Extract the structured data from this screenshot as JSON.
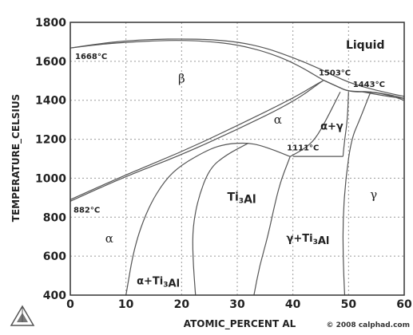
{
  "chart_data": {
    "type": "phase_diagram",
    "xlabel": "ATOMIC_PERCENT AL",
    "ylabel": "TEMPERATURE_CELSIUS",
    "xlim": [
      0,
      60
    ],
    "ylim": [
      400,
      1800
    ],
    "x_ticks": [
      "0",
      "10",
      "20",
      "30",
      "40",
      "50",
      "60"
    ],
    "y_ticks": [
      "1800",
      "1600",
      "1400",
      "1200",
      "1000",
      "800",
      "600",
      "400"
    ],
    "grid": true,
    "regions": [
      {
        "label": "Liquid",
        "x": 53,
        "y": 1665
      },
      {
        "label": "β",
        "x": 20,
        "y": 1490
      },
      {
        "label": "α",
        "x": 37.3,
        "y": 1280
      },
      {
        "label": "α+γ",
        "x": 47,
        "y": 1250
      },
      {
        "label": "Ti₃Al",
        "x": 30.8,
        "y": 885
      },
      {
        "label": "γ",
        "x": 54.5,
        "y": 895
      },
      {
        "label": "α",
        "x": 7,
        "y": 670
      },
      {
        "label": "γ+Ti₃Al",
        "x": 42.7,
        "y": 675
      },
      {
        "label": "α+Ti₃Al",
        "x": 15.8,
        "y": 455
      }
    ],
    "points": [
      {
        "label": "1668°C",
        "x": 0,
        "y": 1668
      },
      {
        "label": "1503°C",
        "x": 45.5,
        "y": 1503
      },
      {
        "label": "1443°C",
        "x": 52.5,
        "y": 1443
      },
      {
        "label": "1111°C",
        "x": 39.5,
        "y": 1111
      },
      {
        "label": "882°C",
        "x": 0,
        "y": 882
      }
    ],
    "boundaries": [
      [
        [
          0,
          1668
        ],
        [
          5,
          1690
        ],
        [
          10,
          1705
        ],
        [
          15,
          1713
        ],
        [
          20,
          1715
        ],
        [
          25,
          1712
        ],
        [
          30,
          1700
        ],
        [
          35,
          1670
        ],
        [
          40,
          1620
        ],
        [
          45,
          1560
        ],
        [
          50,
          1490
        ],
        [
          55,
          1450
        ],
        [
          60,
          1420
        ]
      ],
      [
        [
          0,
          1668
        ],
        [
          5,
          1686
        ],
        [
          10,
          1698
        ],
        [
          15,
          1705
        ],
        [
          20,
          1708
        ],
        [
          25,
          1702
        ],
        [
          30,
          1685
        ],
        [
          35,
          1650
        ],
        [
          40,
          1595
        ],
        [
          45.5,
          1503
        ]
      ],
      [
        [
          0,
          882
        ],
        [
          10,
          1010
        ],
        [
          20,
          1120
        ],
        [
          30,
          1250
        ],
        [
          40,
          1390
        ],
        [
          45.5,
          1503
        ]
      ],
      [
        [
          0,
          890
        ],
        [
          10,
          1018
        ],
        [
          20,
          1135
        ],
        [
          30,
          1270
        ],
        [
          40,
          1410
        ],
        [
          45.5,
          1503
        ]
      ],
      [
        [
          45.5,
          1503
        ],
        [
          48,
          1470
        ],
        [
          50,
          1445
        ],
        [
          52.5,
          1443
        ]
      ],
      [
        [
          52.5,
          1443
        ],
        [
          55,
          1440
        ],
        [
          58,
          1420
        ],
        [
          60,
          1400
        ]
      ],
      [
        [
          52.5,
          1443
        ],
        [
          57,
          1420
        ],
        [
          60,
          1410
        ]
      ],
      [
        [
          45.5,
          1503
        ],
        [
          48,
          1470
        ],
        [
          50,
          1445
        ],
        [
          54,
          1445
        ],
        [
          58,
          1425
        ],
        [
          60,
          1410
        ]
      ],
      [
        [
          50,
          1443
        ],
        [
          49.8,
          1300
        ],
        [
          49.3,
          1200
        ],
        [
          49,
          1111
        ]
      ],
      [
        [
          54,
          1445
        ],
        [
          52,
          1300
        ],
        [
          50.5,
          1200
        ],
        [
          49.5,
          1000
        ],
        [
          49,
          800
        ],
        [
          49,
          600
        ],
        [
          49.3,
          400
        ]
      ],
      [
        [
          40,
          1112
        ],
        [
          49,
          1112
        ]
      ],
      [
        [
          39.5,
          1111
        ],
        [
          37,
          1140
        ],
        [
          34,
          1170
        ],
        [
          32,
          1180
        ],
        [
          30,
          1180
        ],
        [
          28,
          1175
        ],
        [
          25,
          1150
        ],
        [
          20,
          1070
        ],
        [
          17,
          990
        ],
        [
          14,
          850
        ],
        [
          11.5,
          650
        ],
        [
          10,
          400
        ]
      ],
      [
        [
          39.5,
          1111
        ],
        [
          42,
          1150
        ],
        [
          44,
          1200
        ],
        [
          46,
          1300
        ],
        [
          48.5,
          1443
        ]
      ],
      [
        [
          39.5,
          1111
        ],
        [
          38,
          1000
        ],
        [
          37,
          900
        ],
        [
          35.5,
          700
        ],
        [
          34,
          550
        ],
        [
          33,
          400
        ]
      ],
      [
        [
          32,
          1180
        ],
        [
          28,
          1120
        ],
        [
          25,
          1050
        ],
        [
          23,
          900
        ],
        [
          22,
          750
        ],
        [
          22,
          600
        ],
        [
          22.5,
          400
        ]
      ]
    ]
  },
  "copyright": "© 2008 calphad.com",
  "logo_name": "calphad-logo-icon"
}
